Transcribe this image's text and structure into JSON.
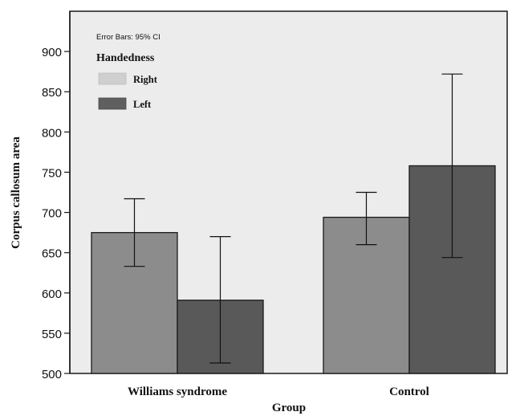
{
  "chart_data": {
    "type": "bar",
    "xlabel": "Group",
    "ylabel": "Corpus callosum area",
    "ylim": [
      500,
      950
    ],
    "yticks": [
      500,
      550,
      600,
      650,
      700,
      750,
      800,
      850,
      900
    ],
    "categories": [
      "Williams syndrome",
      "Control"
    ],
    "series": [
      {
        "name": "Right",
        "values": [
          675,
          694
        ],
        "ci_low": [
          633,
          660
        ],
        "ci_high": [
          717,
          725
        ]
      },
      {
        "name": "Left",
        "values": [
          591,
          758
        ],
        "ci_low": [
          513,
          644
        ],
        "ci_high": [
          670,
          872
        ]
      }
    ],
    "legend": {
      "title": "Handedness",
      "note": "Error Bars: 95% CI",
      "placement": "top-left"
    },
    "colors": {
      "plot_background": "#ececec",
      "Right": "#8c8c8c",
      "Left": "#595959",
      "legend_Right": "#cfcfcf",
      "legend_Left": "#5f5f5f",
      "outline": "#1a1a1a"
    }
  }
}
